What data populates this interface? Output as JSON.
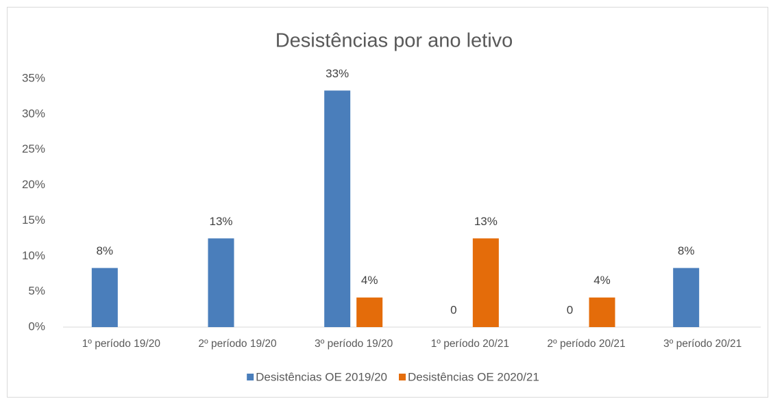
{
  "chart_data": {
    "type": "bar",
    "title": "Desistências por ano letivo",
    "categories": [
      "1º período 19/20",
      "2º período 19/20",
      "3º período 19/20",
      "1º período 20/21",
      "2º período 20/21",
      "3º período 20/21"
    ],
    "series": [
      {
        "name": "Desistências OE 2019/20",
        "color": "#4a7ebb",
        "values": [
          8.33,
          12.5,
          33.33,
          0,
          0,
          8.33
        ],
        "value_labels": [
          "8%",
          "13%",
          "33%",
          "0",
          "0",
          "8%"
        ]
      },
      {
        "name": "Desistências OE 2020/21",
        "color": "#e46c0a",
        "values": [
          null,
          null,
          4.17,
          12.5,
          4.17,
          null
        ],
        "value_labels": [
          null,
          null,
          "4%",
          "13%",
          "4%",
          null
        ]
      }
    ],
    "ylim": [
      0,
      35
    ],
    "yticks": [
      {
        "value": 0,
        "label": "0%"
      },
      {
        "value": 5,
        "label": "5%"
      },
      {
        "value": 10,
        "label": "10%"
      },
      {
        "value": 15,
        "label": "15%"
      },
      {
        "value": 20,
        "label": "20%"
      },
      {
        "value": 25,
        "label": "25%"
      },
      {
        "value": 30,
        "label": "30%"
      },
      {
        "value": 35,
        "label": "35%"
      }
    ],
    "grid": false,
    "legend": "bottom"
  }
}
